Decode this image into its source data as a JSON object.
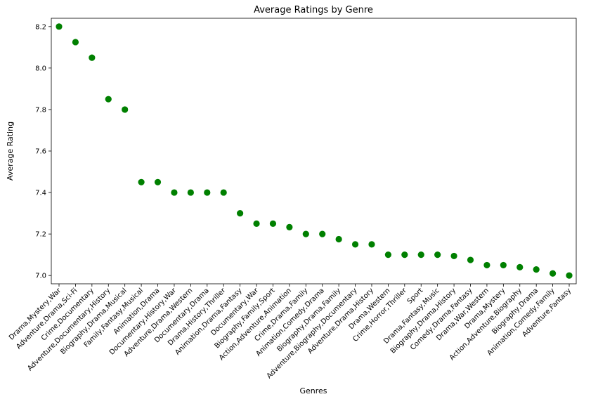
{
  "chart_data": {
    "type": "scatter",
    "title": "Average Ratings by Genre",
    "xlabel": "Genres",
    "ylabel": "Average Rating",
    "marker_color": "#008000",
    "grid": false,
    "ylim": [
      6.96,
      8.24
    ],
    "yticks": [
      "7.0",
      "7.2",
      "7.4",
      "7.6",
      "7.8",
      "8.0",
      "8.2"
    ],
    "categories": [
      "Drama,Mystery,War",
      "Adventure,Drama,Sci-Fi",
      "Crime,Documentary",
      "Adventure,Documentary,History",
      "Biography,Drama,Musical",
      "Family,Fantasy,Musical",
      "Animation,Drama",
      "Documentary,History,War",
      "Adventure,Drama,Western",
      "Documentary,Drama",
      "Drama,History,Thriller",
      "Animation,Drama,Fantasy",
      "Documentary,War",
      "Biography,Family,Sport",
      "Action,Adventure,Animation",
      "Crime,Drama,Family",
      "Animation,Comedy,Drama",
      "Biography,Drama,Family",
      "Adventure,Biography,Documentary",
      "Adventure,Drama,History",
      "Drama,Western",
      "Crime,Horror,Thriller",
      "Sport",
      "Drama,Fantasy,Music",
      "Biography,Drama,History",
      "Comedy,Drama,Fantasy",
      "Drama,War,Western",
      "Drama,Mystery",
      "Action,Adventure,Biography",
      "Biography,Drama",
      "Animation,Comedy,Family",
      "Adventure,Fantasy"
    ],
    "values": [
      8.2,
      8.125,
      8.05,
      7.85,
      7.8,
      7.45,
      7.45,
      7.4,
      7.4,
      7.4,
      7.4,
      7.3,
      7.25,
      7.25,
      7.233,
      7.2,
      7.2,
      7.175,
      7.15,
      7.15,
      7.1,
      7.1,
      7.1,
      7.1,
      7.094,
      7.075,
      7.05,
      7.05,
      7.04,
      7.029,
      7.01,
      7.0
    ]
  }
}
